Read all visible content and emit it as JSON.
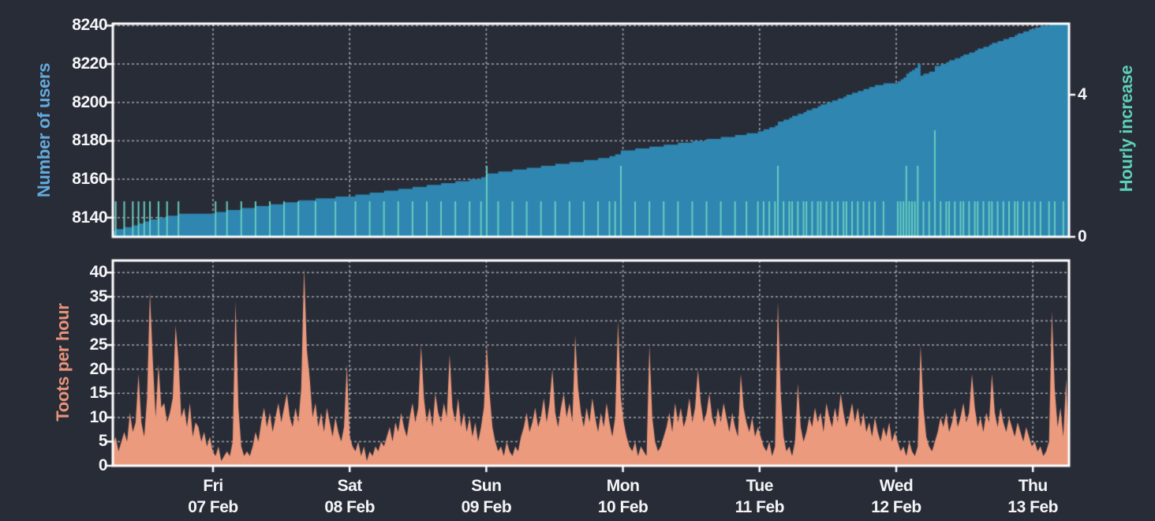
{
  "colors": {
    "background": "#282c37",
    "frame": "#ffffff",
    "grid": "rgba(255,255,255,0.55)",
    "tick_text": "#f4f5f7",
    "users_fill": "#2e86b1",
    "users_axis_accent": "#64aadd",
    "increase_spike": "#68cdbf",
    "increase_axis_accent": "#5ecfb8",
    "toots_fill": "#ec9a7d",
    "toots_axis_accent": "#e8937a"
  },
  "charts": {
    "users": {
      "left_axis": {
        "title": "Number of users",
        "ticks": [
          8140,
          8160,
          8180,
          8200,
          8220,
          8240
        ],
        "range": [
          8130,
          8241
        ]
      },
      "right_axis": {
        "title": "Hourly increase",
        "ticks": [
          0,
          4
        ],
        "range": [
          0,
          6
        ]
      }
    },
    "toots": {
      "left_axis": {
        "title": "Toots per hour",
        "ticks": [
          0,
          5,
          10,
          15,
          20,
          25,
          30,
          35,
          40
        ],
        "range": [
          0,
          42.5
        ]
      }
    },
    "x_axis": {
      "day_ticks": [
        {
          "weekday": "Fri",
          "date": "07 Feb"
        },
        {
          "weekday": "Sat",
          "date": "08 Feb"
        },
        {
          "weekday": "Sun",
          "date": "09 Feb"
        },
        {
          "weekday": "Mon",
          "date": "10 Feb"
        },
        {
          "weekday": "Tue",
          "date": "11 Feb"
        },
        {
          "weekday": "Wed",
          "date": "12 Feb"
        },
        {
          "weekday": "Thu",
          "date": "13 Feb"
        }
      ]
    }
  },
  "chart_data": [
    {
      "type": "area",
      "name": "number_of_users",
      "ylabel": "Number of users",
      "ylim": [
        8130,
        8241
      ],
      "yticks": [
        8140,
        8160,
        8180,
        8200,
        8220,
        8240
      ],
      "start_value": 8133,
      "end_value": 8244,
      "note": "cumulative: start_value plus running sum of series.user_deltas",
      "color": "#2e86b1"
    },
    {
      "type": "bar",
      "name": "hourly_increase",
      "ylabel": "Hourly increase",
      "ylim": [
        0,
        6
      ],
      "yticks": [
        0,
        4
      ],
      "values_ref": "series.user_deltas",
      "color": "#68cdbf"
    },
    {
      "type": "area",
      "name": "toots_per_hour",
      "ylabel": "Toots per hour",
      "ylim": [
        0,
        42.5
      ],
      "yticks": [
        0,
        5,
        10,
        15,
        20,
        25,
        30,
        35,
        40
      ],
      "values_ref": "series.toots_per_hour",
      "color": "#ec9a7d"
    }
  ],
  "series": {
    "sample_interval_minutes": 30,
    "user_deltas": [
      0,
      1,
      0,
      0,
      1,
      0,
      0,
      1,
      0,
      1,
      0,
      1,
      0,
      1,
      0,
      0,
      1,
      0,
      0,
      1,
      0,
      0,
      0,
      1,
      0,
      0,
      0,
      0,
      0,
      0,
      0,
      0,
      0,
      0,
      0,
      0,
      1,
      0,
      0,
      0,
      1,
      0,
      0,
      0,
      0,
      1,
      0,
      0,
      0,
      0,
      1,
      0,
      0,
      0,
      0,
      1,
      0,
      0,
      0,
      0,
      1,
      0,
      0,
      0,
      0,
      1,
      0,
      0,
      0,
      0,
      0,
      1,
      0,
      0,
      0,
      0,
      0,
      0,
      1,
      0,
      0,
      0,
      0,
      0,
      0,
      1,
      0,
      0,
      0,
      0,
      1,
      0,
      0,
      0,
      0,
      1,
      0,
      0,
      0,
      0,
      1,
      0,
      0,
      0,
      0,
      1,
      0,
      0,
      0,
      0,
      1,
      0,
      0,
      0,
      0,
      1,
      0,
      0,
      0,
      0,
      1,
      0,
      0,
      0,
      0,
      1,
      0,
      0,
      0,
      1,
      0,
      2,
      0,
      0,
      0,
      1,
      0,
      0,
      0,
      0,
      1,
      0,
      0,
      0,
      0,
      1,
      0,
      0,
      0,
      0,
      1,
      0,
      0,
      0,
      0,
      1,
      0,
      0,
      0,
      0,
      1,
      0,
      0,
      0,
      0,
      1,
      0,
      0,
      0,
      0,
      1,
      0,
      0,
      0,
      1,
      0,
      1,
      0,
      2,
      0,
      0,
      0,
      0,
      1,
      0,
      0,
      0,
      0,
      1,
      0,
      0,
      0,
      0,
      1,
      0,
      0,
      0,
      0,
      1,
      0,
      0,
      0,
      0,
      1,
      0,
      0,
      0,
      0,
      1,
      0,
      0,
      0,
      0,
      1,
      0,
      0,
      0,
      0,
      1,
      0,
      0,
      0,
      1,
      0,
      0,
      0,
      1,
      0,
      1,
      0,
      1,
      0,
      1,
      2,
      0,
      1,
      0,
      1,
      1,
      0,
      1,
      0,
      1,
      1,
      0,
      1,
      0,
      1,
      1,
      0,
      1,
      0,
      1,
      0,
      1,
      0,
      1,
      1,
      0,
      1,
      0,
      1,
      0,
      1,
      0,
      1,
      0,
      1,
      0,
      0,
      1,
      0,
      0,
      0,
      0,
      1,
      1,
      1,
      2,
      1,
      1,
      1,
      2,
      -6,
      1,
      0,
      1,
      0,
      3,
      0,
      1,
      0,
      1,
      1,
      0,
      1,
      0,
      1,
      1,
      0,
      1,
      0,
      1,
      1,
      0,
      1,
      0,
      1,
      1,
      0,
      1,
      0,
      1,
      0,
      1,
      0,
      1,
      1,
      0,
      1,
      0,
      1,
      0,
      1,
      0,
      1,
      0,
      0,
      1,
      0,
      1,
      0,
      0,
      1,
      0,
      1
    ],
    "toots_per_hour": [
      4,
      6,
      3,
      5,
      7,
      5,
      11,
      7,
      9,
      19,
      9,
      6,
      14,
      36,
      22,
      10,
      21,
      12,
      13,
      9,
      11,
      14,
      29,
      22,
      10,
      12,
      8,
      13,
      6,
      9,
      8,
      5,
      7,
      4,
      6,
      3,
      2,
      4,
      1,
      2,
      3,
      2,
      5,
      34,
      12,
      4,
      2,
      3,
      2,
      4,
      7,
      5,
      9,
      12,
      8,
      11,
      7,
      10,
      13,
      9,
      12,
      15,
      10,
      8,
      12,
      9,
      16,
      41,
      24,
      18,
      10,
      13,
      8,
      11,
      7,
      12,
      9,
      6,
      10,
      7,
      5,
      8,
      21,
      6,
      4,
      3,
      5,
      2,
      4,
      1,
      3,
      2,
      4,
      3,
      5,
      4,
      6,
      8,
      5,
      9,
      7,
      11,
      8,
      6,
      10,
      13,
      9,
      12,
      25,
      14,
      9,
      12,
      8,
      15,
      11,
      9,
      13,
      10,
      23,
      12,
      9,
      14,
      8,
      11,
      7,
      10,
      6,
      9,
      5,
      8,
      12,
      25,
      15,
      8,
      5,
      3,
      4,
      2,
      5,
      3,
      2,
      4,
      3,
      6,
      8,
      11,
      7,
      9,
      12,
      8,
      10,
      14,
      9,
      13,
      20,
      11,
      8,
      12,
      15,
      10,
      13,
      9,
      27,
      16,
      11,
      8,
      12,
      9,
      14,
      10,
      7,
      11,
      8,
      13,
      9,
      6,
      10,
      30,
      14,
      9,
      6,
      4,
      3,
      5,
      2,
      4,
      3,
      2,
      25,
      10,
      5,
      3,
      4,
      6,
      8,
      11,
      7,
      13,
      9,
      12,
      8,
      10,
      14,
      9,
      12,
      20,
      13,
      9,
      11,
      15,
      10,
      8,
      12,
      9,
      13,
      10,
      7,
      11,
      8,
      6,
      19,
      12,
      9,
      7,
      10,
      6,
      8,
      6,
      4,
      3,
      5,
      2,
      4,
      34,
      15,
      6,
      3,
      4,
      2,
      5,
      17,
      8,
      5,
      7,
      10,
      8,
      12,
      9,
      11,
      7,
      13,
      10,
      8,
      12,
      9,
      15,
      11,
      8,
      10,
      13,
      9,
      12,
      8,
      11,
      7,
      9,
      6,
      10,
      7,
      5,
      8,
      6,
      9,
      5,
      7,
      5,
      3,
      4,
      2,
      5,
      3,
      2,
      4,
      25,
      12,
      6,
      4,
      3,
      5,
      7,
      10,
      8,
      11,
      7,
      9,
      12,
      8,
      10,
      13,
      9,
      11,
      19,
      12,
      8,
      10,
      7,
      11,
      9,
      19,
      11,
      8,
      12,
      9,
      7,
      10,
      8,
      6,
      9,
      7,
      5,
      8,
      6,
      4,
      5,
      3,
      4,
      2,
      3,
      5,
      32,
      16,
      8,
      12,
      6,
      18,
      4
    ]
  }
}
